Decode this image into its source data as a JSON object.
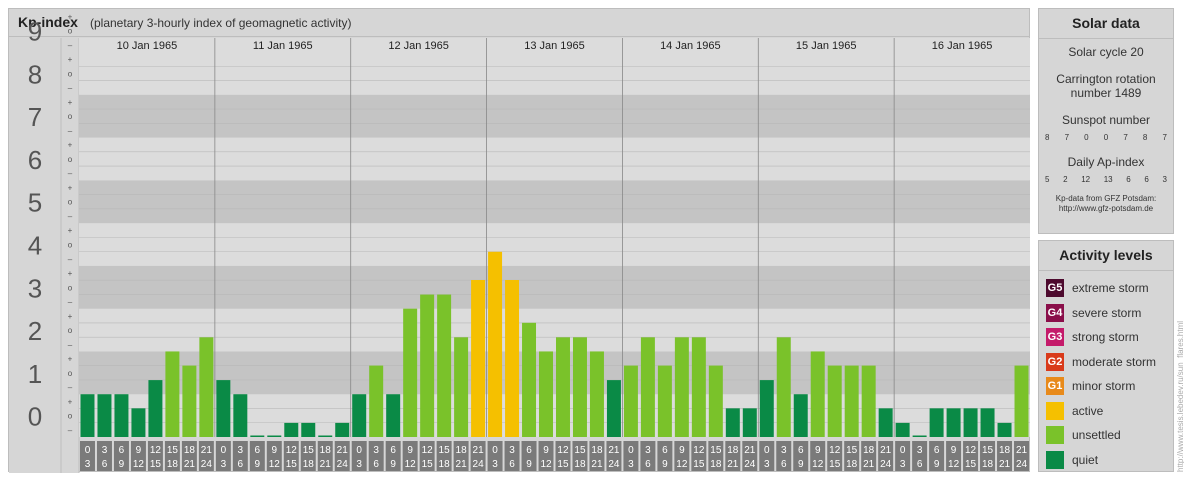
{
  "chart_data": {
    "type": "bar",
    "title": "Kp-index",
    "subtitle": "(planetary 3-hourly index of geomagnetic activity)",
    "days": [
      "10 Jan 1965",
      "11 Jan 1965",
      "12 Jan 1965",
      "13 Jan 1965",
      "14 Jan 1965",
      "15 Jan 1965",
      "16 Jan 1965"
    ],
    "intervals_top": [
      "0",
      "3",
      "6",
      "9",
      "12",
      "15",
      "18",
      "21"
    ],
    "intervals_bottom": [
      "3",
      "6",
      "9",
      "12",
      "15",
      "18",
      "21",
      "24"
    ],
    "ylim": [
      0,
      9
    ],
    "y_ticks": [
      "0",
      "1",
      "2",
      "3",
      "4",
      "5",
      "6",
      "7",
      "8",
      "9"
    ],
    "thirds_labels": [
      "–",
      "o",
      "+"
    ],
    "values": [
      1.0,
      1.0,
      1.0,
      0.67,
      1.33,
      2.0,
      1.67,
      2.33,
      1.33,
      1.0,
      0.0,
      0.0,
      0.33,
      0.33,
      0.0,
      0.33,
      1.0,
      1.67,
      1.0,
      3.0,
      3.33,
      3.33,
      2.33,
      3.67,
      4.33,
      3.67,
      2.67,
      2.0,
      2.33,
      2.33,
      2.0,
      1.33,
      1.67,
      2.33,
      1.67,
      2.33,
      2.33,
      1.67,
      0.67,
      0.67,
      1.33,
      2.33,
      1.0,
      2.0,
      1.67,
      1.67,
      1.67,
      0.67,
      0.33,
      0.0,
      0.67,
      0.67,
      0.67,
      0.67,
      0.33,
      1.67
    ],
    "level_colors": {
      "quiet": "#0a8a46",
      "unsettled": "#7ac22a",
      "active": "#f5c000"
    }
  },
  "solar": {
    "title": "Solar data",
    "cycle": "Solar cycle 20",
    "carrington_line1": "Carrington rotation",
    "carrington_line2": "number 1489",
    "sunspot_title": "Sunspot number",
    "sunspot_values": [
      "8",
      "7",
      "0",
      "0",
      "7",
      "8",
      "7"
    ],
    "ap_title": "Daily Ap-index",
    "ap_values": [
      "5",
      "2",
      "12",
      "13",
      "6",
      "6",
      "3"
    ],
    "credit_line1": "Kp-data from GFZ Potsdam:",
    "credit_line2": "http://www.gfz-potsdam.de"
  },
  "levels": {
    "title": "Activity levels",
    "items": [
      {
        "badge": "G5",
        "label": "extreme storm",
        "color": "#4d0a2e"
      },
      {
        "badge": "G4",
        "label": "severe storm",
        "color": "#8a0f4a"
      },
      {
        "badge": "G3",
        "label": "strong storm",
        "color": "#c41a6a"
      },
      {
        "badge": "G2",
        "label": "moderate storm",
        "color": "#d93a1a"
      },
      {
        "badge": "G1",
        "label": "minor storm",
        "color": "#e88a1a"
      },
      {
        "badge": "",
        "label": "active",
        "color": "#f5c000"
      },
      {
        "badge": "",
        "label": "unsettled",
        "color": "#7ac22a"
      },
      {
        "badge": "",
        "label": "quiet",
        "color": "#0a8a46"
      }
    ]
  },
  "watermark": "http://www.tesis.lebedev.ru/sun_flares.html"
}
